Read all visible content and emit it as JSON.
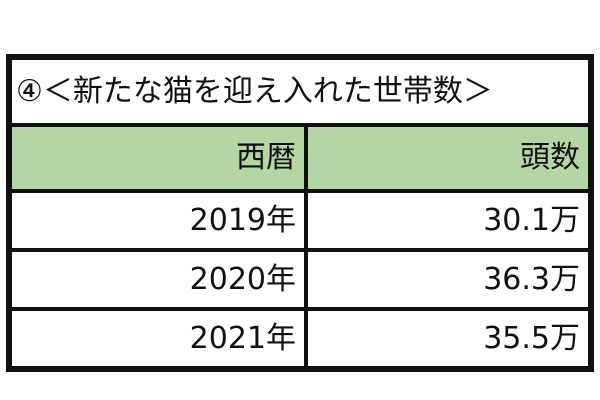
{
  "table": {
    "title": "④＜新たな猫を迎え入れた世帯数＞",
    "header_color": "#b5d5a5",
    "columns": [
      "西暦",
      "頭数"
    ],
    "rows": [
      [
        "2019年",
        "30.1万"
      ],
      [
        "2020年",
        "36.3万"
      ],
      [
        "2021年",
        "35.5万"
      ]
    ]
  }
}
